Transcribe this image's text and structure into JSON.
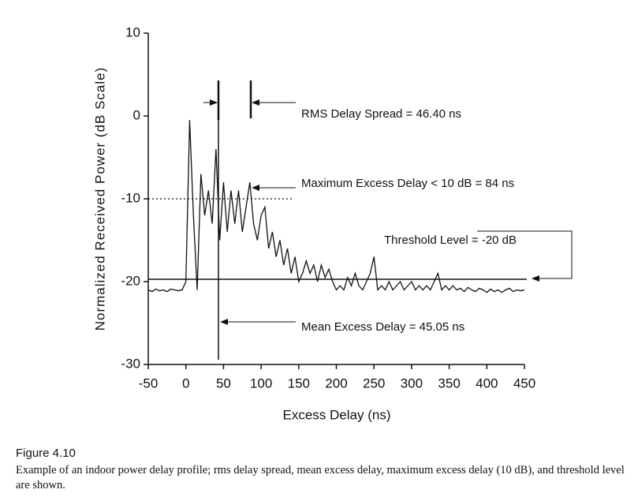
{
  "chart_data": {
    "type": "line",
    "x_label": "Excess Delay (ns)",
    "y_label": "Normalized Received Power (dB Scale)",
    "annotations": [
      "RMS Delay Spread = 46.40 ns",
      "Maximum Excess Delay < 10 dB = 84 ns",
      "Threshold Level = -20 dB",
      "Mean Excess Delay = 45.05 ns"
    ],
    "x": [
      -50,
      -45,
      -40,
      -35,
      -30,
      -25,
      -20,
      -15,
      -10,
      -5,
      0,
      5,
      10,
      15,
      20,
      25,
      30,
      35,
      40,
      45,
      50,
      55,
      60,
      65,
      70,
      75,
      80,
      85,
      90,
      95,
      100,
      105,
      110,
      115,
      120,
      125,
      130,
      135,
      140,
      145,
      150,
      155,
      160,
      165,
      170,
      175,
      180,
      185,
      190,
      195,
      200,
      205,
      210,
      215,
      220,
      225,
      230,
      235,
      240,
      245,
      250,
      255,
      260,
      265,
      270,
      275,
      280,
      285,
      290,
      295,
      300,
      305,
      310,
      315,
      320,
      325,
      330,
      335,
      340,
      345,
      350,
      355,
      360,
      365,
      370,
      375,
      380,
      385,
      390,
      395,
      400,
      405,
      410,
      415,
      420,
      425,
      430,
      435,
      440,
      445,
      450
    ],
    "series": [
      {
        "color": "#111111",
        "values": [
          -21,
          -21.2,
          -20.9,
          -21.1,
          -21,
          -21.2,
          -20.9,
          -21,
          -21.1,
          -21,
          -20,
          -0.5,
          -12,
          -21,
          -7,
          -12,
          -9,
          -13,
          -4,
          -15,
          -8,
          -14,
          -9,
          -13,
          -9,
          -14,
          -11,
          -8,
          -13,
          -15,
          -12,
          -11,
          -16,
          -14,
          -17,
          -15,
          -18,
          -16,
          -19,
          -17,
          -20,
          -19,
          -17.5,
          -19,
          -18,
          -20,
          -18,
          -19.5,
          -18.5,
          -20,
          -21,
          -20.5,
          -21,
          -19.5,
          -20.5,
          -19,
          -20.5,
          -21,
          -20,
          -19,
          -17,
          -21,
          -20.5,
          -21,
          -20,
          -21,
          -20.5,
          -20,
          -21,
          -20.5,
          -20,
          -21,
          -20.5,
          -21,
          -20.5,
          -21,
          -20,
          -19,
          -21,
          -20.5,
          -21,
          -20.5,
          -21,
          -20.8,
          -21.2,
          -20.7,
          -21,
          -21.2,
          -20.8,
          -21,
          -21.3,
          -20.9,
          -21.2,
          -21,
          -21.3,
          -21,
          -20.8,
          -21.2,
          -21,
          -21.1,
          -21
        ]
      }
    ],
    "xlim": [
      -50,
      450
    ],
    "xticks": [
      -50,
      0,
      50,
      100,
      150,
      200,
      250,
      300,
      350,
      400,
      450
    ],
    "ylim": [
      -30,
      10
    ],
    "yticks": [
      -30,
      -20,
      -10,
      0,
      10
    ]
  },
  "caption": {
    "label": "Figure 4.10",
    "text": "Example of an indoor power delay profile; rms delay spread, mean excess delay, maximum excess delay (10 dB), and threshold level are shown."
  }
}
